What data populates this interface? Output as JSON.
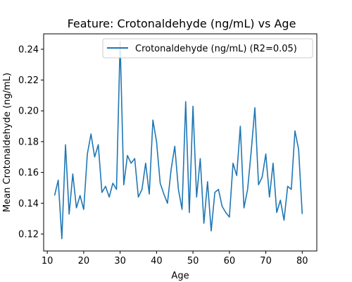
{
  "chart_data": {
    "type": "line",
    "title": "Feature: Crotonaldehyde (ng/mL) vs Age",
    "xlabel": "Age",
    "ylabel": "Mean Crotonaldehyde (ng/mL)",
    "xlim": [
      9,
      84
    ],
    "ylim": [
      0.109,
      0.25
    ],
    "xticks": [
      10,
      20,
      30,
      40,
      50,
      60,
      70,
      80
    ],
    "yticks": [
      0.12,
      0.14,
      0.16,
      0.18,
      0.2,
      0.22,
      0.24
    ],
    "ytick_labels": [
      "0.12",
      "0.14",
      "0.16",
      "0.18",
      "0.20",
      "0.22",
      "0.24"
    ],
    "grid": false,
    "legend_position": "top-right",
    "series": [
      {
        "name": "Crotonaldehyde (ng/mL) (R2=0.05)",
        "color": "#1f77b4",
        "x": [
          12,
          13,
          14,
          15,
          16,
          17,
          18,
          19,
          20,
          21,
          22,
          23,
          24,
          25,
          26,
          27,
          28,
          29,
          30,
          31,
          32,
          33,
          34,
          35,
          36,
          37,
          38,
          39,
          40,
          41,
          42,
          43,
          44,
          45,
          46,
          47,
          48,
          49,
          50,
          51,
          52,
          53,
          54,
          55,
          56,
          57,
          58,
          59,
          60,
          61,
          62,
          63,
          64,
          65,
          66,
          67,
          68,
          69,
          70,
          71,
          72,
          73,
          74,
          75,
          76,
          77,
          78,
          79,
          80
        ],
        "y": [
          0.145,
          0.155,
          0.117,
          0.178,
          0.133,
          0.159,
          0.137,
          0.145,
          0.136,
          0.172,
          0.185,
          0.17,
          0.178,
          0.147,
          0.151,
          0.144,
          0.153,
          0.149,
          0.245,
          0.152,
          0.171,
          0.166,
          0.169,
          0.144,
          0.149,
          0.166,
          0.146,
          0.194,
          0.18,
          0.153,
          0.146,
          0.14,
          0.162,
          0.177,
          0.149,
          0.136,
          0.206,
          0.134,
          0.203,
          0.144,
          0.169,
          0.127,
          0.154,
          0.122,
          0.147,
          0.149,
          0.138,
          0.134,
          0.131,
          0.166,
          0.158,
          0.19,
          0.137,
          0.149,
          0.174,
          0.202,
          0.152,
          0.157,
          0.172,
          0.144,
          0.166,
          0.134,
          0.142,
          0.129,
          0.151,
          0.149,
          0.187,
          0.175,
          0.133
        ]
      }
    ]
  }
}
